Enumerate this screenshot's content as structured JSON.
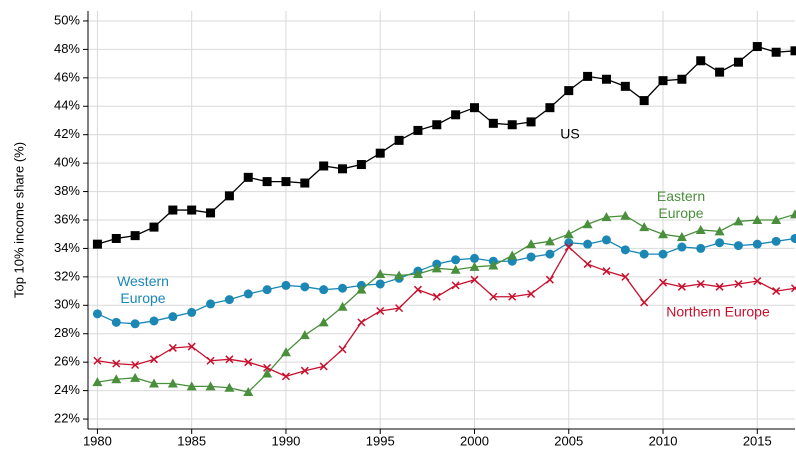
{
  "chart_data": {
    "type": "line",
    "y_label": "Top 10% income share (%)",
    "x": [
      1980,
      1981,
      1982,
      1983,
      1984,
      1985,
      1986,
      1987,
      1988,
      1989,
      1990,
      1991,
      1992,
      1993,
      1994,
      1995,
      1996,
      1997,
      1998,
      1999,
      2000,
      2001,
      2002,
      2003,
      2004,
      2005,
      2006,
      2007,
      2008,
      2009,
      2010,
      2011,
      2012,
      2013,
      2014,
      2015,
      2016,
      2017
    ],
    "xlim": [
      1979.5,
      2017
    ],
    "xticks": [
      1980,
      1985,
      1990,
      1995,
      2000,
      2005,
      2010,
      2015
    ],
    "ylim": [
      21.3,
      50.7
    ],
    "yticks": [
      {
        "value": 22,
        "label": "22%"
      },
      {
        "value": 24,
        "label": "24%"
      },
      {
        "value": 26,
        "label": "26%"
      },
      {
        "value": 28,
        "label": "28%"
      },
      {
        "value": 30,
        "label": "30%"
      },
      {
        "value": 32,
        "label": "32%"
      },
      {
        "value": 34,
        "label": "34%"
      },
      {
        "value": 36,
        "label": "36%"
      },
      {
        "value": 38,
        "label": "38%"
      },
      {
        "value": 40,
        "label": "40%"
      },
      {
        "value": 42,
        "label": "42%"
      },
      {
        "value": 44,
        "label": "44%"
      },
      {
        "value": 46,
        "label": "46%"
      },
      {
        "value": 48,
        "label": "48%"
      },
      {
        "value": 50,
        "label": "50%"
      }
    ],
    "grid": true,
    "series": [
      {
        "name": "US",
        "color": "#000000",
        "marker": "square",
        "values": [
          34.3,
          34.7,
          34.9,
          35.5,
          36.7,
          36.7,
          36.5,
          37.7,
          39.0,
          38.7,
          38.7,
          38.6,
          39.8,
          39.6,
          39.9,
          40.7,
          41.6,
          42.3,
          42.7,
          43.4,
          43.9,
          42.8,
          42.7,
          42.9,
          43.9,
          45.1,
          46.1,
          45.9,
          45.4,
          44.4,
          45.8,
          45.9,
          47.2,
          46.4,
          47.1,
          48.2,
          47.8,
          47.9
        ]
      },
      {
        "name": "Western Europe",
        "color": "#1a87b5",
        "marker": "circle",
        "values": [
          29.4,
          28.8,
          28.7,
          28.9,
          29.2,
          29.5,
          30.1,
          30.4,
          30.8,
          31.1,
          31.4,
          31.3,
          31.1,
          31.2,
          31.4,
          31.5,
          31.9,
          32.4,
          32.9,
          33.2,
          33.3,
          33.1,
          33.1,
          33.4,
          33.6,
          34.4,
          34.3,
          34.6,
          33.9,
          33.6,
          33.6,
          34.1,
          34.0,
          34.4,
          34.2,
          34.3,
          34.5,
          34.7
        ]
      },
      {
        "name": "Eastern Europe",
        "color": "#4a8f3c",
        "marker": "triangle",
        "values": [
          24.6,
          24.8,
          24.9,
          24.5,
          24.5,
          24.3,
          24.3,
          24.2,
          23.9,
          25.2,
          26.7,
          27.9,
          28.8,
          29.9,
          31.1,
          32.2,
          32.1,
          32.2,
          32.6,
          32.5,
          32.7,
          32.8,
          33.5,
          34.3,
          34.5,
          35.0,
          35.7,
          36.2,
          36.3,
          35.5,
          35.0,
          34.8,
          35.3,
          35.2,
          35.9,
          36.0,
          36.0,
          36.4
        ]
      },
      {
        "name": "Northern Europe",
        "color": "#c8102e",
        "marker": "cross",
        "values": [
          26.1,
          25.9,
          25.8,
          26.2,
          27.0,
          27.1,
          26.1,
          26.2,
          26.0,
          25.6,
          25.0,
          25.4,
          25.7,
          26.9,
          28.8,
          29.6,
          29.8,
          31.1,
          30.6,
          31.4,
          31.8,
          30.6,
          30.6,
          30.8,
          31.8,
          34.1,
          32.9,
          32.4,
          32.0,
          30.2,
          31.6,
          31.3,
          31.5,
          31.3,
          31.5,
          31.7,
          31.0,
          31.2
        ]
      }
    ]
  }
}
